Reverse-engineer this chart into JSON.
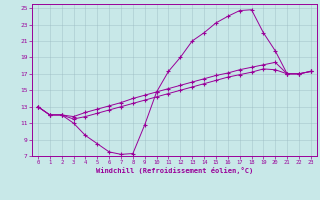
{
  "background_color": "#c8e8e8",
  "line_color": "#990099",
  "xlabel": "Windchill (Refroidissement éolien,°C)",
  "xlim": [
    -0.5,
    23.5
  ],
  "ylim": [
    7,
    25.5
  ],
  "xticks": [
    0,
    1,
    2,
    3,
    4,
    5,
    6,
    7,
    8,
    9,
    10,
    11,
    12,
    13,
    14,
    15,
    16,
    17,
    18,
    19,
    20,
    21,
    22,
    23
  ],
  "yticks": [
    7,
    9,
    11,
    13,
    15,
    17,
    19,
    21,
    23,
    25
  ],
  "line1_x": [
    0,
    1,
    2,
    3,
    4,
    5,
    6,
    7,
    8,
    9,
    10,
    11,
    12,
    13,
    14,
    15,
    16,
    17,
    18,
    19,
    20,
    21,
    22,
    23
  ],
  "line1_y": [
    13,
    12,
    12,
    11,
    9.5,
    8.5,
    7.5,
    7.2,
    7.3,
    10.8,
    14.8,
    17.3,
    19.0,
    21.0,
    22.0,
    23.2,
    24.0,
    24.7,
    24.8,
    22.0,
    19.8,
    17.0,
    17.0,
    17.3
  ],
  "line2_x": [
    0,
    1,
    2,
    3,
    4,
    5,
    6,
    7,
    8,
    9,
    10,
    11,
    12,
    13,
    14,
    15,
    16,
    17,
    18,
    19,
    20,
    21,
    22,
    23
  ],
  "line2_y": [
    13,
    12,
    12,
    11.8,
    12.3,
    12.7,
    13.1,
    13.5,
    14.0,
    14.4,
    14.8,
    15.2,
    15.6,
    16.0,
    16.4,
    16.8,
    17.1,
    17.5,
    17.8,
    18.1,
    18.4,
    17.0,
    17.0,
    17.3
  ],
  "line3_x": [
    0,
    1,
    2,
    3,
    4,
    5,
    6,
    7,
    8,
    9,
    10,
    11,
    12,
    13,
    14,
    15,
    16,
    17,
    18,
    19,
    20,
    21,
    22,
    23
  ],
  "line3_y": [
    13,
    12,
    12,
    11.5,
    11.8,
    12.2,
    12.6,
    13.0,
    13.4,
    13.8,
    14.2,
    14.6,
    15.0,
    15.4,
    15.8,
    16.2,
    16.6,
    16.9,
    17.2,
    17.6,
    17.5,
    17.0,
    17.0,
    17.3
  ]
}
